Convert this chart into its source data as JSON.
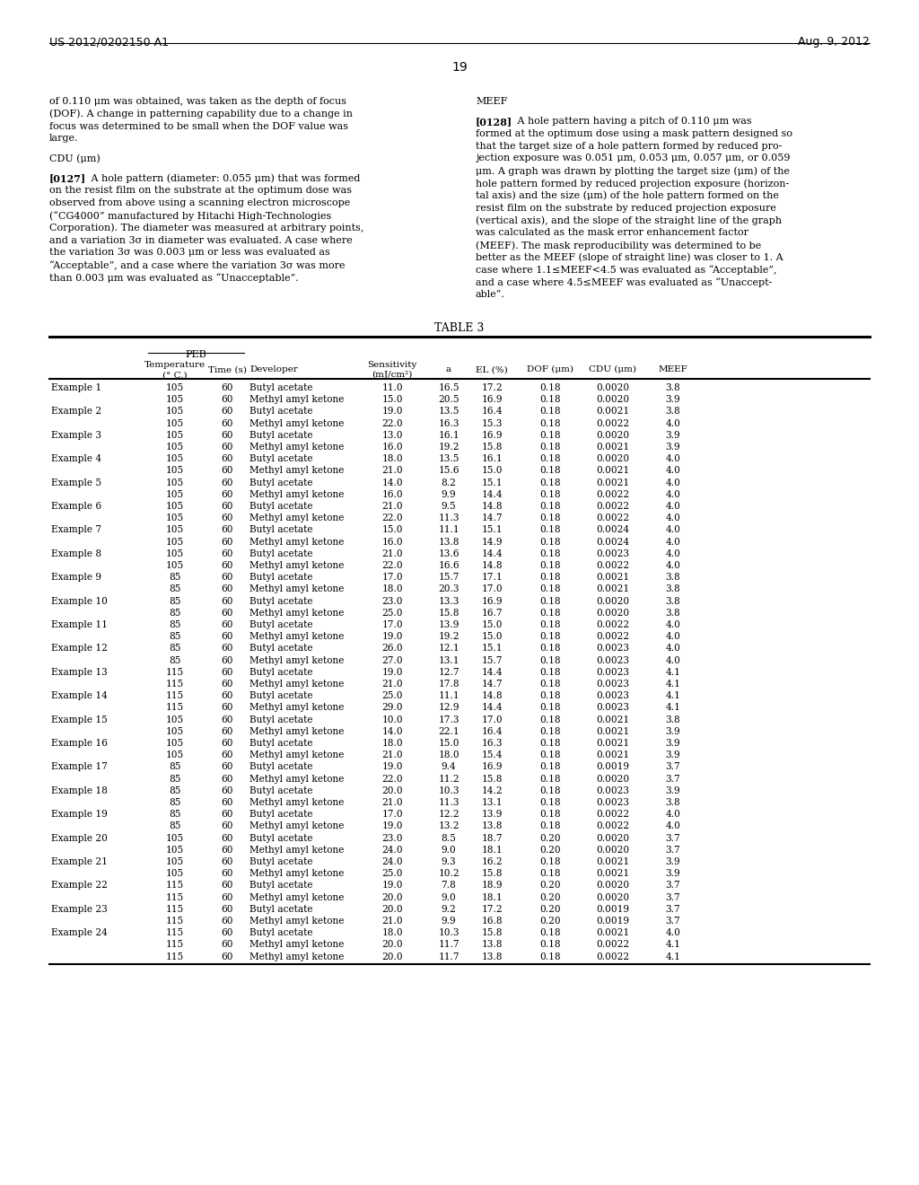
{
  "title_left": "US 2012/0202150 A1",
  "title_right": "Aug. 9, 2012",
  "page_number": "19",
  "left_column_text": [
    "of 0.110 μm was obtained, was taken as the depth of focus",
    "(DOF). A change in patterning capability due to a change in",
    "focus was determined to be small when the DOF value was",
    "large.",
    "",
    "CDU (μm)",
    "",
    "[0127]   A hole pattern (diameter: 0.055 μm) that was formed",
    "on the resist film on the substrate at the optimum dose was",
    "observed from above using a scanning electron microscope",
    "(“CG4000” manufactured by Hitachi High-Technologies",
    "Corporation). The diameter was measured at arbitrary points,",
    "and a variation 3σ in diameter was evaluated. A case where",
    "the variation 3σ was 0.003 μm or less was evaluated as",
    "“Acceptable”, and a case where the variation 3σ was more",
    "than 0.003 μm was evaluated as “Unacceptable”."
  ],
  "right_column_text": [
    "MEEF",
    "",
    "[0128]   A hole pattern having a pitch of 0.110 μm was",
    "formed at the optimum dose using a mask pattern designed so",
    "that the target size of a hole pattern formed by reduced pro-",
    "jection exposure was 0.051 μm, 0.053 μm, 0.057 μm, or 0.059",
    "μm. A graph was drawn by plotting the target size (μm) of the",
    "hole pattern formed by reduced projection exposure (horizon-",
    "tal axis) and the size (μm) of the hole pattern formed on the",
    "resist film on the substrate by reduced projection exposure",
    "(vertical axis), and the slope of the straight line of the graph",
    "was calculated as the mask error enhancement factor",
    "(MEEF). The mask reproducibility was determined to be",
    "better as the MEEF (slope of straight line) was closer to 1. A",
    "case where 1.1≤MEEF<4.5 was evaluated as “Acceptable”,",
    "and a case where 4.5≤MEEF was evaluated as “Unaccept-",
    "able”."
  ],
  "table_title": "TABLE 3",
  "peb_header": "PEB",
  "table_data": [
    [
      "Example 1",
      "105",
      "60",
      "Butyl acetate",
      "11.0",
      "16.5",
      "17.2",
      "0.18",
      "0.0020",
      "3.8"
    ],
    [
      "",
      "105",
      "60",
      "Methyl amyl ketone",
      "15.0",
      "20.5",
      "16.9",
      "0.18",
      "0.0020",
      "3.9"
    ],
    [
      "Example 2",
      "105",
      "60",
      "Butyl acetate",
      "19.0",
      "13.5",
      "16.4",
      "0.18",
      "0.0021",
      "3.8"
    ],
    [
      "",
      "105",
      "60",
      "Methyl amyl ketone",
      "22.0",
      "16.3",
      "15.3",
      "0.18",
      "0.0022",
      "4.0"
    ],
    [
      "Example 3",
      "105",
      "60",
      "Butyl acetate",
      "13.0",
      "16.1",
      "16.9",
      "0.18",
      "0.0020",
      "3.9"
    ],
    [
      "",
      "105",
      "60",
      "Methyl amyl ketone",
      "16.0",
      "19.2",
      "15.8",
      "0.18",
      "0.0021",
      "3.9"
    ],
    [
      "Example 4",
      "105",
      "60",
      "Butyl acetate",
      "18.0",
      "13.5",
      "16.1",
      "0.18",
      "0.0020",
      "4.0"
    ],
    [
      "",
      "105",
      "60",
      "Methyl amyl ketone",
      "21.0",
      "15.6",
      "15.0",
      "0.18",
      "0.0021",
      "4.0"
    ],
    [
      "Example 5",
      "105",
      "60",
      "Butyl acetate",
      "14.0",
      "8.2",
      "15.1",
      "0.18",
      "0.0021",
      "4.0"
    ],
    [
      "",
      "105",
      "60",
      "Methyl amyl ketone",
      "16.0",
      "9.9",
      "14.4",
      "0.18",
      "0.0022",
      "4.0"
    ],
    [
      "Example 6",
      "105",
      "60",
      "Butyl acetate",
      "21.0",
      "9.5",
      "14.8",
      "0.18",
      "0.0022",
      "4.0"
    ],
    [
      "",
      "105",
      "60",
      "Methyl amyl ketone",
      "22.0",
      "11.3",
      "14.7",
      "0.18",
      "0.0022",
      "4.0"
    ],
    [
      "Example 7",
      "105",
      "60",
      "Butyl acetate",
      "15.0",
      "11.1",
      "15.1",
      "0.18",
      "0.0024",
      "4.0"
    ],
    [
      "",
      "105",
      "60",
      "Methyl amyl ketone",
      "16.0",
      "13.8",
      "14.9",
      "0.18",
      "0.0024",
      "4.0"
    ],
    [
      "Example 8",
      "105",
      "60",
      "Butyl acetate",
      "21.0",
      "13.6",
      "14.4",
      "0.18",
      "0.0023",
      "4.0"
    ],
    [
      "",
      "105",
      "60",
      "Methyl amyl ketone",
      "22.0",
      "16.6",
      "14.8",
      "0.18",
      "0.0022",
      "4.0"
    ],
    [
      "Example 9",
      "85",
      "60",
      "Butyl acetate",
      "17.0",
      "15.7",
      "17.1",
      "0.18",
      "0.0021",
      "3.8"
    ],
    [
      "",
      "85",
      "60",
      "Methyl amyl ketone",
      "18.0",
      "20.3",
      "17.0",
      "0.18",
      "0.0021",
      "3.8"
    ],
    [
      "Example 10",
      "85",
      "60",
      "Butyl acetate",
      "23.0",
      "13.3",
      "16.9",
      "0.18",
      "0.0020",
      "3.8"
    ],
    [
      "",
      "85",
      "60",
      "Methyl amyl ketone",
      "25.0",
      "15.8",
      "16.7",
      "0.18",
      "0.0020",
      "3.8"
    ],
    [
      "Example 11",
      "85",
      "60",
      "Butyl acetate",
      "17.0",
      "13.9",
      "15.0",
      "0.18",
      "0.0022",
      "4.0"
    ],
    [
      "",
      "85",
      "60",
      "Methyl amyl ketone",
      "19.0",
      "19.2",
      "15.0",
      "0.18",
      "0.0022",
      "4.0"
    ],
    [
      "Example 12",
      "85",
      "60",
      "Butyl acetate",
      "26.0",
      "12.1",
      "15.1",
      "0.18",
      "0.0023",
      "4.0"
    ],
    [
      "",
      "85",
      "60",
      "Methyl amyl ketone",
      "27.0",
      "13.1",
      "15.7",
      "0.18",
      "0.0023",
      "4.0"
    ],
    [
      "Example 13",
      "115",
      "60",
      "Butyl acetate",
      "19.0",
      "12.7",
      "14.4",
      "0.18",
      "0.0023",
      "4.1"
    ],
    [
      "",
      "115",
      "60",
      "Methyl amyl ketone",
      "21.0",
      "17.8",
      "14.7",
      "0.18",
      "0.0023",
      "4.1"
    ],
    [
      "Example 14",
      "115",
      "60",
      "Butyl acetate",
      "25.0",
      "11.1",
      "14.8",
      "0.18",
      "0.0023",
      "4.1"
    ],
    [
      "",
      "115",
      "60",
      "Methyl amyl ketone",
      "29.0",
      "12.9",
      "14.4",
      "0.18",
      "0.0023",
      "4.1"
    ],
    [
      "Example 15",
      "105",
      "60",
      "Butyl acetate",
      "10.0",
      "17.3",
      "17.0",
      "0.18",
      "0.0021",
      "3.8"
    ],
    [
      "",
      "105",
      "60",
      "Methyl amyl ketone",
      "14.0",
      "22.1",
      "16.4",
      "0.18",
      "0.0021",
      "3.9"
    ],
    [
      "Example 16",
      "105",
      "60",
      "Butyl acetate",
      "18.0",
      "15.0",
      "16.3",
      "0.18",
      "0.0021",
      "3.9"
    ],
    [
      "",
      "105",
      "60",
      "Methyl amyl ketone",
      "21.0",
      "18.0",
      "15.4",
      "0.18",
      "0.0021",
      "3.9"
    ],
    [
      "Example 17",
      "85",
      "60",
      "Butyl acetate",
      "19.0",
      "9.4",
      "16.9",
      "0.18",
      "0.0019",
      "3.7"
    ],
    [
      "",
      "85",
      "60",
      "Methyl amyl ketone",
      "22.0",
      "11.2",
      "15.8",
      "0.18",
      "0.0020",
      "3.7"
    ],
    [
      "Example 18",
      "85",
      "60",
      "Butyl acetate",
      "20.0",
      "10.3",
      "14.2",
      "0.18",
      "0.0023",
      "3.9"
    ],
    [
      "",
      "85",
      "60",
      "Methyl amyl ketone",
      "21.0",
      "11.3",
      "13.1",
      "0.18",
      "0.0023",
      "3.8"
    ],
    [
      "Example 19",
      "85",
      "60",
      "Butyl acetate",
      "17.0",
      "12.2",
      "13.9",
      "0.18",
      "0.0022",
      "4.0"
    ],
    [
      "",
      "85",
      "60",
      "Methyl amyl ketone",
      "19.0",
      "13.2",
      "13.8",
      "0.18",
      "0.0022",
      "4.0"
    ],
    [
      "Example 20",
      "105",
      "60",
      "Butyl acetate",
      "23.0",
      "8.5",
      "18.7",
      "0.20",
      "0.0020",
      "3.7"
    ],
    [
      "",
      "105",
      "60",
      "Methyl amyl ketone",
      "24.0",
      "9.0",
      "18.1",
      "0.20",
      "0.0020",
      "3.7"
    ],
    [
      "Example 21",
      "105",
      "60",
      "Butyl acetate",
      "24.0",
      "9.3",
      "16.2",
      "0.18",
      "0.0021",
      "3.9"
    ],
    [
      "",
      "105",
      "60",
      "Methyl amyl ketone",
      "25.0",
      "10.2",
      "15.8",
      "0.18",
      "0.0021",
      "3.9"
    ],
    [
      "Example 22",
      "115",
      "60",
      "Butyl acetate",
      "19.0",
      "7.8",
      "18.9",
      "0.20",
      "0.0020",
      "3.7"
    ],
    [
      "",
      "115",
      "60",
      "Methyl amyl ketone",
      "20.0",
      "9.0",
      "18.1",
      "0.20",
      "0.0020",
      "3.7"
    ],
    [
      "Example 23",
      "115",
      "60",
      "Butyl acetate",
      "20.0",
      "9.2",
      "17.2",
      "0.20",
      "0.0019",
      "3.7"
    ],
    [
      "",
      "115",
      "60",
      "Methyl amyl ketone",
      "21.0",
      "9.9",
      "16.8",
      "0.20",
      "0.0019",
      "3.7"
    ],
    [
      "Example 24",
      "115",
      "60",
      "Butyl acetate",
      "18.0",
      "10.3",
      "15.8",
      "0.18",
      "0.0021",
      "4.0"
    ],
    [
      "",
      "115",
      "60",
      "Methyl amyl ketone",
      "20.0",
      "11.7",
      "13.8",
      "0.18",
      "0.0022",
      "4.1"
    ],
    [
      "",
      "115",
      "60",
      "Methyl amyl ketone",
      "20.0",
      "11.7",
      "13.8",
      "0.18",
      "0.0022",
      "4.1"
    ]
  ],
  "bg_color": "#ffffff",
  "text_color": "#000000"
}
